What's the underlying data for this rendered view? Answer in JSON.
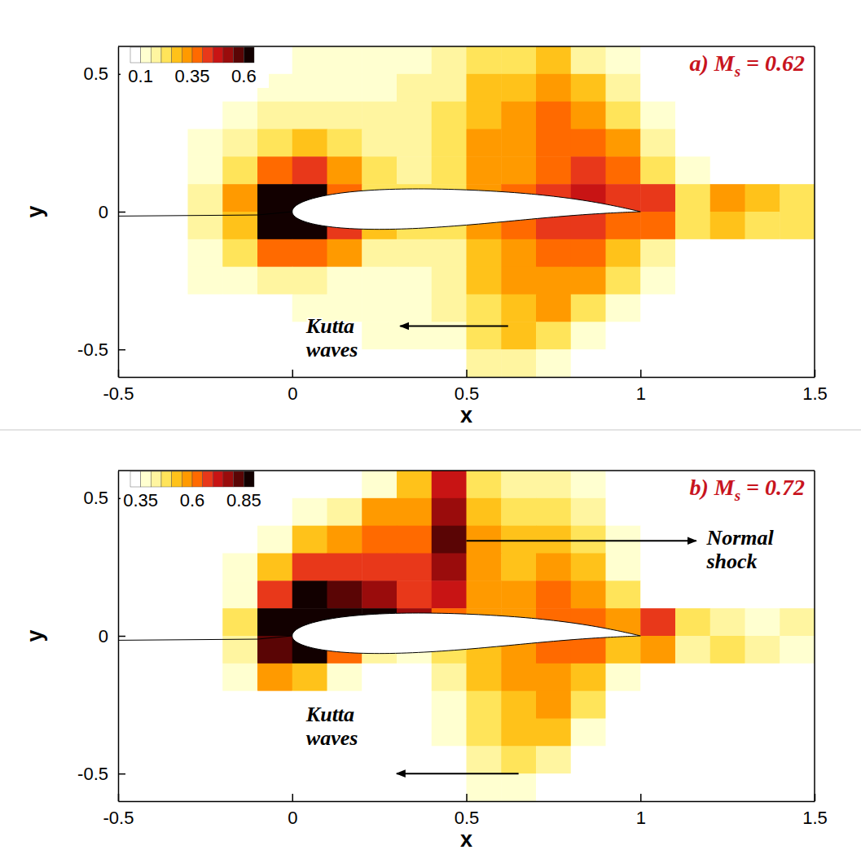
{
  "chart_data": [
    {
      "type": "heatmap",
      "title": "a) Ms = 0.62",
      "xlabel": "x",
      "ylabel": "y",
      "xlim": [
        -0.5,
        1.5
      ],
      "ylim": [
        -0.6,
        0.6
      ],
      "xticks": [
        -0.5,
        0,
        0.5,
        1,
        1.5
      ],
      "yticks": [
        -0.5,
        0,
        0.5
      ],
      "annotations": [
        "Kutta waves"
      ],
      "colorbar": {
        "range": [
          0.05,
          0.65
        ],
        "levels": [
          0.05,
          0.1,
          0.15,
          0.2,
          0.25,
          0.3,
          0.35,
          0.4,
          0.45,
          0.5,
          0.55,
          0.6,
          0.65
        ],
        "ticks": [
          0.1,
          0.35,
          0.6
        ]
      },
      "cells": {
        "x": [
          -0.45,
          -0.35,
          -0.25,
          -0.15,
          -0.05,
          0.05,
          0.15,
          0.25,
          0.35,
          0.45,
          0.55,
          0.65,
          0.75,
          0.85,
          0.95,
          1.05,
          1.15,
          1.25,
          1.35,
          1.45
        ],
        "y": [
          0.55,
          0.45,
          0.35,
          0.25,
          0.15,
          0.05,
          -0.05,
          -0.15,
          -0.25,
          -0.35,
          -0.45,
          -0.55
        ],
        "values": [
          [
            0.05,
            0.05,
            0.05,
            0.05,
            0.05,
            0.12,
            0.12,
            0.12,
            0.12,
            0.15,
            0.2,
            0.22,
            0.25,
            0.18,
            0.1,
            0.05,
            0.05,
            0.05,
            0.05,
            0.05
          ],
          [
            0.05,
            0.05,
            0.05,
            0.08,
            0.12,
            0.13,
            0.14,
            0.14,
            0.15,
            0.18,
            0.25,
            0.28,
            0.3,
            0.25,
            0.15,
            0.08,
            0.05,
            0.05,
            0.05,
            0.05
          ],
          [
            0.05,
            0.05,
            0.08,
            0.12,
            0.15,
            0.18,
            0.17,
            0.16,
            0.17,
            0.2,
            0.28,
            0.3,
            0.35,
            0.3,
            0.22,
            0.12,
            0.05,
            0.05,
            0.05,
            0.05
          ],
          [
            0.05,
            0.05,
            0.12,
            0.15,
            0.22,
            0.25,
            0.22,
            0.18,
            0.18,
            0.2,
            0.3,
            0.32,
            0.35,
            0.38,
            0.3,
            0.15,
            0.08,
            0.05,
            0.05,
            0.05
          ],
          [
            0.05,
            0.05,
            0.13,
            0.2,
            0.35,
            0.4,
            0.3,
            0.2,
            0.18,
            0.2,
            0.3,
            0.32,
            0.38,
            0.4,
            0.35,
            0.2,
            0.1,
            0.05,
            0.05,
            0.05
          ],
          [
            0.05,
            0.08,
            0.15,
            0.3,
            0.6,
            0.65,
            0.35,
            0.22,
            0.2,
            0.22,
            0.3,
            0.35,
            0.4,
            0.45,
            0.4,
            0.4,
            0.2,
            0.3,
            0.25,
            0.2
          ],
          [
            0.05,
            0.08,
            0.15,
            0.28,
            0.62,
            0.6,
            0.4,
            0.25,
            0.2,
            0.2,
            0.3,
            0.35,
            0.4,
            0.4,
            0.35,
            0.35,
            0.2,
            0.25,
            0.2,
            0.2
          ],
          [
            0.05,
            0.05,
            0.13,
            0.2,
            0.35,
            0.35,
            0.3,
            0.18,
            0.15,
            0.18,
            0.28,
            0.32,
            0.35,
            0.35,
            0.28,
            0.15,
            0.08,
            0.05,
            0.05,
            0.05
          ],
          [
            0.05,
            0.05,
            0.1,
            0.13,
            0.15,
            0.15,
            0.14,
            0.13,
            0.14,
            0.18,
            0.25,
            0.3,
            0.32,
            0.3,
            0.2,
            0.1,
            0.05,
            0.05,
            0.05,
            0.05
          ],
          [
            0.05,
            0.05,
            0.05,
            0.05,
            0.08,
            0.12,
            0.12,
            0.12,
            0.13,
            0.15,
            0.22,
            0.28,
            0.3,
            0.22,
            0.12,
            0.05,
            0.05,
            0.05,
            0.05,
            0.05
          ],
          [
            0.05,
            0.05,
            0.05,
            0.05,
            0.05,
            0.05,
            0.08,
            0.1,
            0.1,
            0.12,
            0.2,
            0.25,
            0.22,
            0.12,
            0.05,
            0.05,
            0.05,
            0.05,
            0.05,
            0.05
          ],
          [
            0.05,
            0.05,
            0.05,
            0.05,
            0.05,
            0.05,
            0.05,
            0.05,
            0.05,
            0.08,
            0.15,
            0.18,
            0.12,
            0.05,
            0.05,
            0.05,
            0.05,
            0.05,
            0.05,
            0.05
          ]
        ]
      }
    },
    {
      "type": "heatmap",
      "title": "b) Ms = 0.72",
      "xlabel": "x",
      "ylabel": "y",
      "xlim": [
        -0.5,
        1.5
      ],
      "ylim": [
        -0.6,
        0.6
      ],
      "xticks": [
        -0.5,
        0,
        0.5,
        1,
        1.5
      ],
      "yticks": [
        -0.5,
        0,
        0.5
      ],
      "annotations": [
        "Kutta waves",
        "Normal shock"
      ],
      "colorbar": {
        "range": [
          0.3,
          0.9
        ],
        "levels": [
          0.3,
          0.35,
          0.4,
          0.45,
          0.5,
          0.55,
          0.6,
          0.65,
          0.7,
          0.75,
          0.8,
          0.85,
          0.9
        ],
        "ticks": [
          0.35,
          0.6,
          0.85
        ]
      },
      "cells": {
        "x": [
          -0.45,
          -0.35,
          -0.25,
          -0.15,
          -0.05,
          0.05,
          0.15,
          0.25,
          0.35,
          0.45,
          0.55,
          0.65,
          0.75,
          0.85,
          0.95,
          1.05,
          1.15,
          1.25,
          1.35,
          1.45
        ],
        "y": [
          0.55,
          0.45,
          0.35,
          0.25,
          0.15,
          0.05,
          -0.05,
          -0.15,
          -0.25,
          -0.35,
          -0.45,
          -0.55
        ],
        "values": [
          [
            0.3,
            0.3,
            0.3,
            0.3,
            0.3,
            0.3,
            0.3,
            0.38,
            0.5,
            0.7,
            0.45,
            0.4,
            0.42,
            0.38,
            0.3,
            0.3,
            0.3,
            0.3,
            0.3,
            0.3
          ],
          [
            0.3,
            0.3,
            0.3,
            0.3,
            0.3,
            0.35,
            0.42,
            0.55,
            0.55,
            0.75,
            0.5,
            0.45,
            0.48,
            0.4,
            0.32,
            0.3,
            0.3,
            0.3,
            0.3,
            0.3
          ],
          [
            0.3,
            0.3,
            0.3,
            0.3,
            0.38,
            0.5,
            0.58,
            0.62,
            0.62,
            0.8,
            0.55,
            0.5,
            0.5,
            0.45,
            0.35,
            0.3,
            0.3,
            0.3,
            0.3,
            0.3
          ],
          [
            0.3,
            0.3,
            0.3,
            0.35,
            0.5,
            0.65,
            0.68,
            0.68,
            0.65,
            0.75,
            0.55,
            0.5,
            0.55,
            0.5,
            0.38,
            0.3,
            0.3,
            0.3,
            0.3,
            0.3
          ],
          [
            0.3,
            0.3,
            0.3,
            0.38,
            0.65,
            0.85,
            0.8,
            0.75,
            0.68,
            0.7,
            0.55,
            0.55,
            0.6,
            0.55,
            0.45,
            0.32,
            0.3,
            0.3,
            0.3,
            0.3
          ],
          [
            0.3,
            0.3,
            0.32,
            0.45,
            0.85,
            0.9,
            0.88,
            0.85,
            0.75,
            0.6,
            0.55,
            0.55,
            0.6,
            0.6,
            0.55,
            0.65,
            0.45,
            0.4,
            0.35,
            0.4
          ],
          [
            0.3,
            0.3,
            0.32,
            0.42,
            0.8,
            0.88,
            0.6,
            0.4,
            0.38,
            0.45,
            0.5,
            0.55,
            0.6,
            0.6,
            0.5,
            0.55,
            0.4,
            0.45,
            0.4,
            0.35
          ],
          [
            0.3,
            0.3,
            0.3,
            0.35,
            0.55,
            0.5,
            0.36,
            0.32,
            0.32,
            0.42,
            0.5,
            0.55,
            0.58,
            0.52,
            0.38,
            0.3,
            0.3,
            0.3,
            0.3,
            0.3
          ],
          [
            0.3,
            0.3,
            0.3,
            0.3,
            0.32,
            0.3,
            0.3,
            0.3,
            0.3,
            0.38,
            0.48,
            0.52,
            0.55,
            0.45,
            0.32,
            0.3,
            0.3,
            0.3,
            0.3,
            0.3
          ],
          [
            0.3,
            0.3,
            0.3,
            0.3,
            0.3,
            0.3,
            0.3,
            0.3,
            0.3,
            0.35,
            0.45,
            0.5,
            0.5,
            0.38,
            0.3,
            0.3,
            0.3,
            0.3,
            0.3,
            0.3
          ],
          [
            0.3,
            0.3,
            0.3,
            0.3,
            0.3,
            0.3,
            0.3,
            0.3,
            0.3,
            0.33,
            0.42,
            0.45,
            0.4,
            0.32,
            0.3,
            0.3,
            0.3,
            0.3,
            0.3,
            0.3
          ],
          [
            0.3,
            0.3,
            0.3,
            0.3,
            0.3,
            0.3,
            0.3,
            0.3,
            0.3,
            0.3,
            0.36,
            0.38,
            0.32,
            0.3,
            0.3,
            0.3,
            0.3,
            0.3,
            0.3,
            0.3
          ]
        ]
      }
    }
  ]
}
